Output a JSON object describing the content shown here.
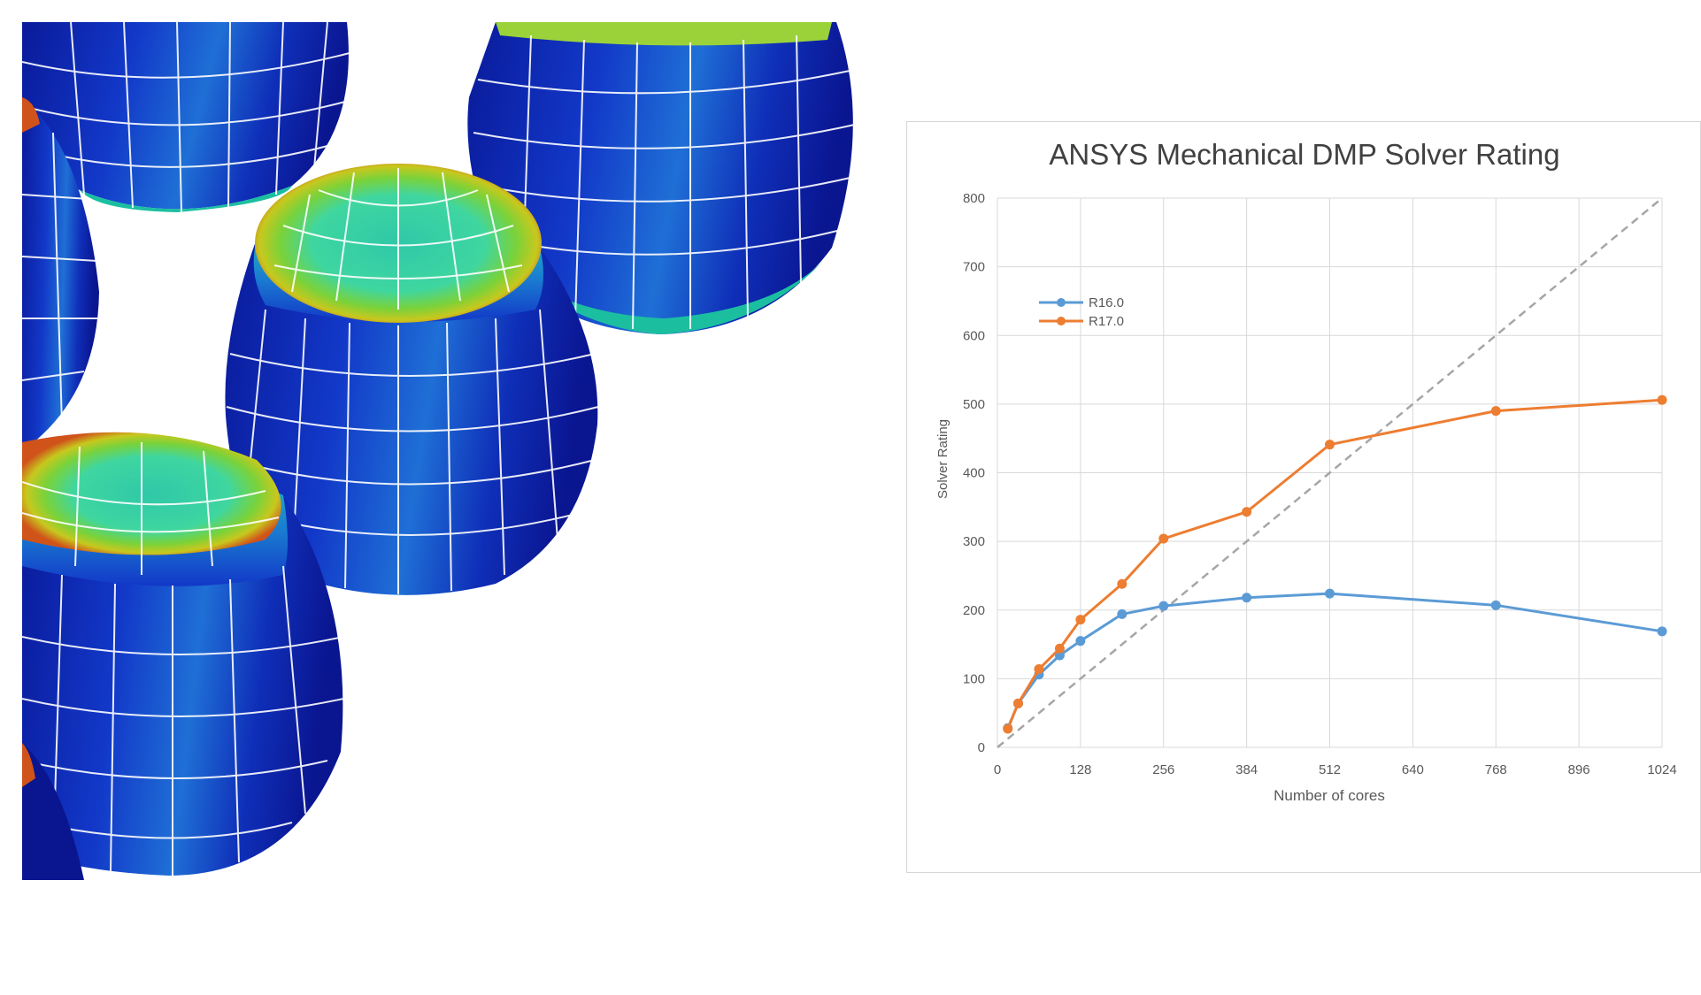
{
  "colors": {
    "series_r16": "#5b9bd5",
    "series_r17": "#ed7d31",
    "ideal_line": "#a6a6a6",
    "gridlines": "#d9d9d9",
    "panel_border": "#d6d6d6"
  },
  "figure": {
    "left_image_subject": "fea-mesh-barrels"
  },
  "chart_data": {
    "type": "line",
    "title": "ANSYS Mechanical DMP Solver Rating",
    "xlabel": "Number of cores",
    "ylabel": "Solver Rating",
    "xlim": [
      0,
      1024
    ],
    "ylim": [
      0,
      800
    ],
    "x_ticks": [
      "0",
      "128",
      "256",
      "384",
      "512",
      "640",
      "768",
      "896",
      "1024"
    ],
    "y_ticks": [
      "0",
      "100",
      "200",
      "300",
      "400",
      "500",
      "600",
      "700",
      "800"
    ],
    "grid": true,
    "legend_position": "top-left",
    "series": [
      {
        "name": "R16.0",
        "color": "#5b9bd5",
        "x": [
          16,
          32,
          64,
          96,
          128,
          192,
          256,
          384,
          512,
          768,
          1024
        ],
        "y": [
          28,
          64,
          106,
          134,
          155,
          194,
          206,
          218,
          224,
          207,
          169
        ]
      },
      {
        "name": "R17.0",
        "color": "#ed7d31",
        "x": [
          16,
          32,
          64,
          96,
          128,
          192,
          256,
          384,
          512,
          768,
          1024
        ],
        "y": [
          27,
          64,
          114,
          144,
          186,
          238,
          304,
          343,
          441,
          490,
          506
        ]
      }
    ],
    "reference_line": {
      "style": "dashed",
      "color": "#a6a6a6",
      "x": [
        0,
        1024
      ],
      "y": [
        0,
        800
      ]
    }
  }
}
